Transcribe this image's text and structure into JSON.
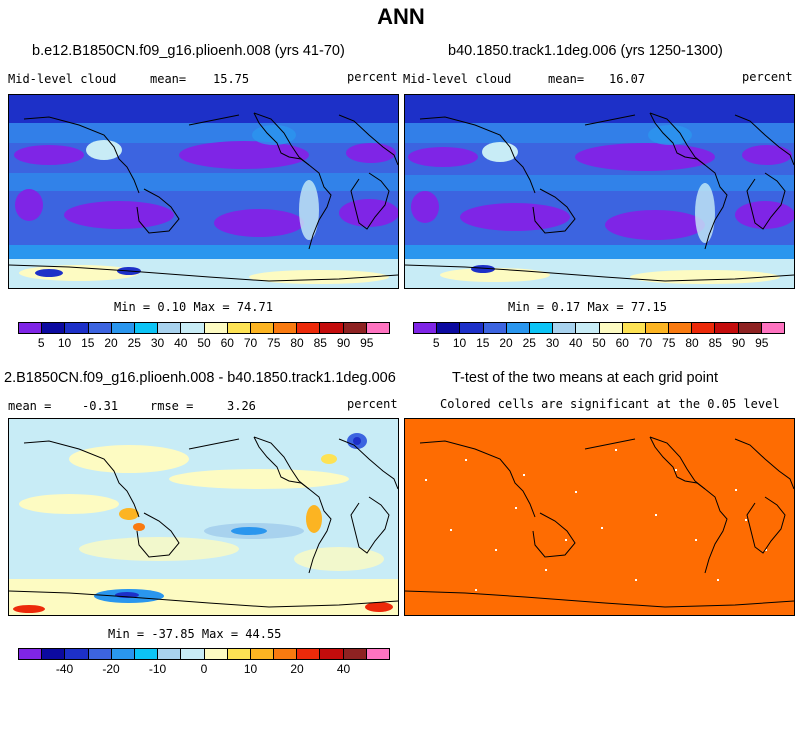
{
  "title": "ANN",
  "panels": [
    {
      "title": "b.e12.B1850CN.f09_g16.plioenh.008 (yrs 41-70)",
      "variable": "Mid-level cloud",
      "mean_label": "mean=",
      "mean_value": "15.75",
      "units": "percent",
      "minmax": "Min =    0.10 Max =   74.71"
    },
    {
      "title": "b40.1850.track1.1deg.006 (yrs 1250-1300)",
      "variable": "Mid-level cloud",
      "mean_label": "mean=",
      "mean_value": "16.07",
      "units": "percent",
      "minmax": "Min =    0.17 Max =   77.15"
    },
    {
      "title": "2.B1850CN.f09_g16.plioenh.008 - b40.1850.track1.1deg.006",
      "mean_label": "mean =",
      "mean_value": "-0.31",
      "rmse_label": "rmse =",
      "rmse_value": "3.26",
      "units": "percent",
      "minmax": "Min = -37.85 Max =  44.55"
    },
    {
      "title": "T-test of the two means at each grid point",
      "subtitle": "Colored cells are significant at the 0.05 level"
    }
  ],
  "colorbar_abs": {
    "colors": [
      "#7f25e6",
      "#0c0aa0",
      "#1d30c8",
      "#3c64e0",
      "#2a96ee",
      "#0cc4f6",
      "#a8d2ee",
      "#c8ecf6",
      "#fdfbc2",
      "#fde254",
      "#fcb422",
      "#f97a10",
      "#ec2a0a",
      "#c40c0c",
      "#8e2222",
      "#fe73c0"
    ],
    "labels": [
      "5",
      "10",
      "15",
      "20",
      "25",
      "30",
      "40",
      "50",
      "60",
      "70",
      "75",
      "80",
      "85",
      "90",
      "95"
    ]
  },
  "colorbar_diff": {
    "colors": [
      "#7f25e6",
      "#0c0aa0",
      "#1d30c8",
      "#3c64e0",
      "#2a96ee",
      "#0cc4f6",
      "#a8d2ee",
      "#c8ecf6",
      "#fdfbc2",
      "#fde254",
      "#fcb422",
      "#f97a10",
      "#ec2a0a",
      "#c40c0c",
      "#8e2222",
      "#fe73c0"
    ],
    "labels": [
      "-40",
      "-20",
      "-10",
      "0",
      "10",
      "20",
      "40"
    ]
  },
  "ttest_color": "#fe6c02",
  "chart_data": [
    {
      "type": "heatmap",
      "title": "b.e12.B1850CN.f09_g16.plioenh.008 (yrs 41-70)",
      "variable": "Mid-level cloud",
      "units": "percent",
      "mean": 15.75,
      "min": 0.1,
      "max": 74.71,
      "levels": [
        5,
        10,
        15,
        20,
        25,
        30,
        40,
        50,
        60,
        70,
        75,
        80,
        85,
        90,
        95
      ]
    },
    {
      "type": "heatmap",
      "title": "b40.1850.track1.1deg.006 (yrs 1250-1300)",
      "variable": "Mid-level cloud",
      "units": "percent",
      "mean": 16.07,
      "min": 0.17,
      "max": 77.15,
      "levels": [
        5,
        10,
        15,
        20,
        25,
        30,
        40,
        50,
        60,
        70,
        75,
        80,
        85,
        90,
        95
      ]
    },
    {
      "type": "heatmap",
      "title": "2.B1850CN.f09_g16.plioenh.008 - b40.1850.track1.1deg.006",
      "units": "percent",
      "mean": -0.31,
      "rmse": 3.26,
      "min": -37.85,
      "max": 44.55,
      "levels": [
        -40,
        -20,
        -10,
        0,
        10,
        20,
        40
      ]
    },
    {
      "type": "heatmap",
      "title": "T-test of the two means at each grid point",
      "subtitle": "Colored cells are significant at the 0.05 level"
    }
  ]
}
